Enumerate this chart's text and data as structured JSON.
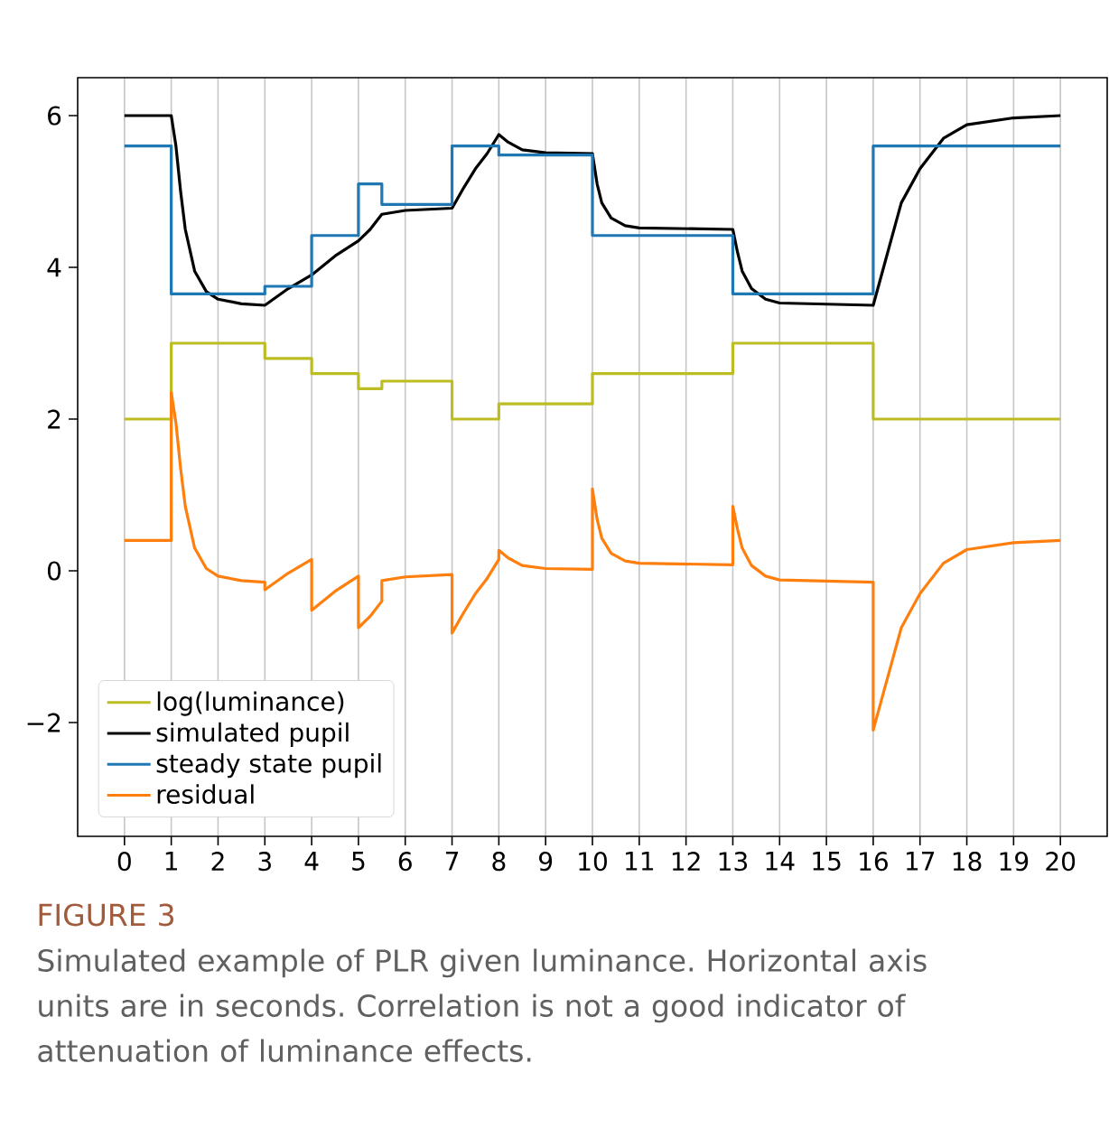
{
  "chart_data": {
    "type": "line",
    "xlim": [
      -1,
      21
    ],
    "ylim": [
      -3.5,
      6.5
    ],
    "xticks": [
      0,
      1,
      2,
      3,
      4,
      5,
      6,
      7,
      8,
      9,
      10,
      11,
      12,
      13,
      14,
      15,
      16,
      17,
      18,
      19,
      20
    ],
    "yticks": [
      {
        "value": -2,
        "label": "−2"
      },
      0,
      2,
      4,
      6
    ],
    "grid": "x",
    "legend": "lower left",
    "series": [
      {
        "name": "log(luminance)",
        "type": "step",
        "color": "#bcbd22",
        "x": [
          0,
          1,
          3,
          4,
          5,
          5.5,
          7,
          8,
          10,
          13,
          16,
          20
        ],
        "values": [
          2,
          3,
          2.8,
          2.6,
          2.4,
          2.5,
          2,
          2.2,
          2.6,
          3,
          2,
          2
        ]
      },
      {
        "name": "simulated pupil",
        "color": "#000000",
        "x": [
          0,
          1,
          1.1,
          1.2,
          1.3,
          1.5,
          1.75,
          2,
          2.5,
          3,
          3.5,
          4,
          4.5,
          5,
          5.25,
          5.5,
          6,
          7,
          7.25,
          7.5,
          7.75,
          8,
          8.2,
          8.5,
          9,
          10,
          10.1,
          10.2,
          10.4,
          10.7,
          11,
          13,
          13.1,
          13.2,
          13.4,
          13.7,
          14,
          16,
          16.2,
          16.4,
          16.6,
          17,
          17.5,
          18,
          19,
          20
        ],
        "values": [
          6.0,
          6.0,
          5.6,
          5.0,
          4.5,
          3.95,
          3.68,
          3.58,
          3.52,
          3.5,
          3.72,
          3.9,
          4.15,
          4.35,
          4.5,
          4.7,
          4.75,
          4.78,
          5.05,
          5.3,
          5.5,
          5.75,
          5.65,
          5.55,
          5.51,
          5.5,
          5.1,
          4.85,
          4.65,
          4.55,
          4.52,
          4.5,
          4.2,
          3.95,
          3.72,
          3.58,
          3.53,
          3.5,
          3.95,
          4.4,
          4.85,
          5.3,
          5.7,
          5.88,
          5.97,
          6.0
        ]
      },
      {
        "name": "steady state pupil",
        "type": "step",
        "color": "#1f77b4",
        "x": [
          0,
          1,
          3,
          4,
          5,
          5.5,
          7,
          8,
          10,
          13,
          16,
          20
        ],
        "values": [
          5.6,
          3.65,
          3.75,
          4.42,
          5.1,
          4.83,
          5.6,
          5.48,
          4.42,
          3.65,
          5.6,
          5.6
        ]
      },
      {
        "name": "residual",
        "color": "#ff7f0e",
        "x": [
          0,
          1,
          1,
          1.1,
          1.2,
          1.3,
          1.5,
          1.75,
          2,
          2.5,
          3,
          3,
          3.5,
          4,
          4,
          4.5,
          5,
          5,
          5.25,
          5.5,
          5.5,
          6,
          7,
          7,
          7.25,
          7.5,
          7.75,
          8,
          8,
          8.2,
          8.5,
          9,
          10,
          10,
          10.1,
          10.2,
          10.4,
          10.7,
          11,
          13,
          13,
          13.1,
          13.2,
          13.4,
          13.7,
          14,
          16,
          16,
          16.2,
          16.4,
          16.6,
          17,
          17.5,
          18,
          19,
          20
        ],
        "values": [
          0.4,
          0.4,
          2.35,
          1.95,
          1.35,
          0.85,
          0.3,
          0.03,
          -0.07,
          -0.13,
          -0.15,
          -0.25,
          -0.03,
          0.15,
          -0.52,
          -0.27,
          -0.07,
          -0.75,
          -0.6,
          -0.4,
          -0.13,
          -0.08,
          -0.05,
          -0.82,
          -0.55,
          -0.3,
          -0.1,
          0.15,
          0.27,
          0.17,
          0.07,
          0.03,
          0.02,
          1.08,
          0.68,
          0.43,
          0.23,
          0.13,
          0.1,
          0.08,
          0.85,
          0.55,
          0.3,
          0.07,
          -0.07,
          -0.12,
          -0.15,
          -2.1,
          -1.65,
          -1.2,
          -0.75,
          -0.3,
          0.1,
          0.28,
          0.37,
          0.4
        ]
      }
    ],
    "annotations": [
      "FIGURE 3",
      "Simulated example of PLR given luminance. Horizontal axis units are in seconds. Correlation is not a good indicator of attenuation of luminance effects."
    ]
  }
}
